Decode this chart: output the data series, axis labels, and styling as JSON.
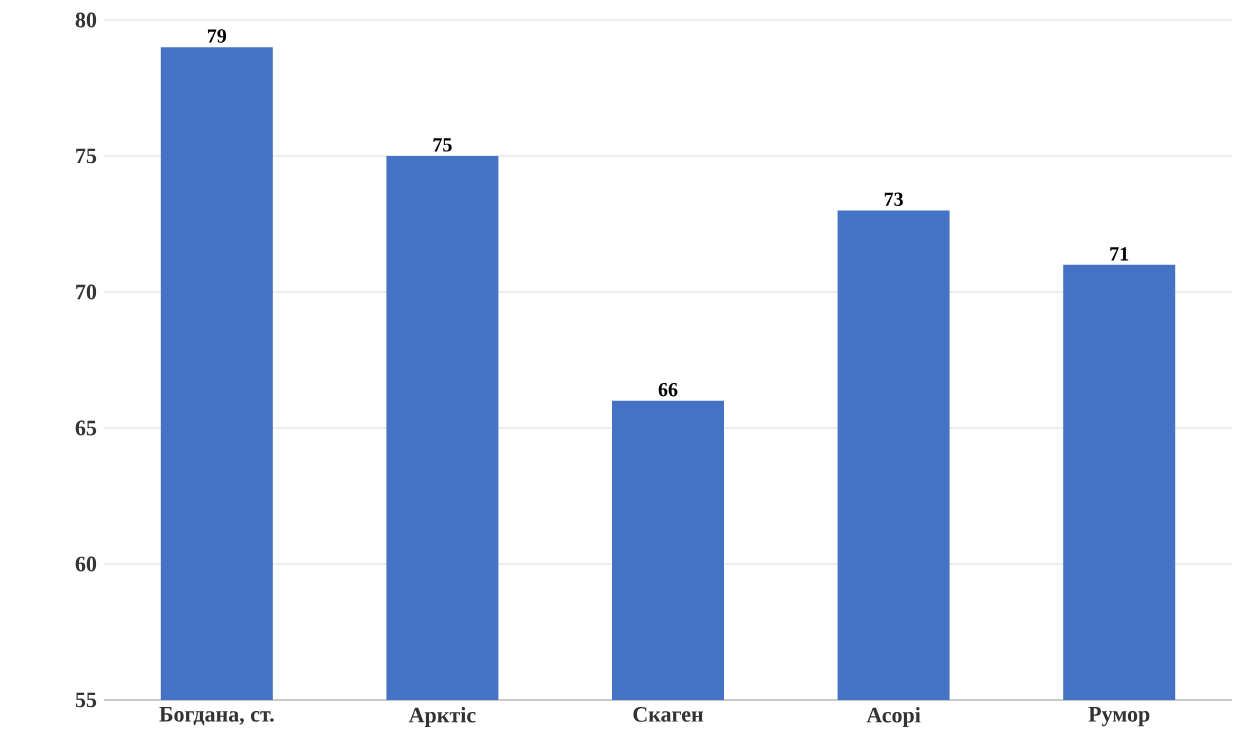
{
  "chart_data": {
    "type": "bar",
    "categories": [
      "Богдана, ст.",
      "Арктіс",
      "Скаген",
      "Асорі",
      "Румор"
    ],
    "values": [
      79,
      75,
      66,
      73,
      71
    ],
    "color": "#4472c4",
    "ylim": [
      55,
      80
    ],
    "yticks": [
      55,
      60,
      65,
      70,
      75,
      80
    ],
    "grid": "y",
    "data_labels": true
  }
}
